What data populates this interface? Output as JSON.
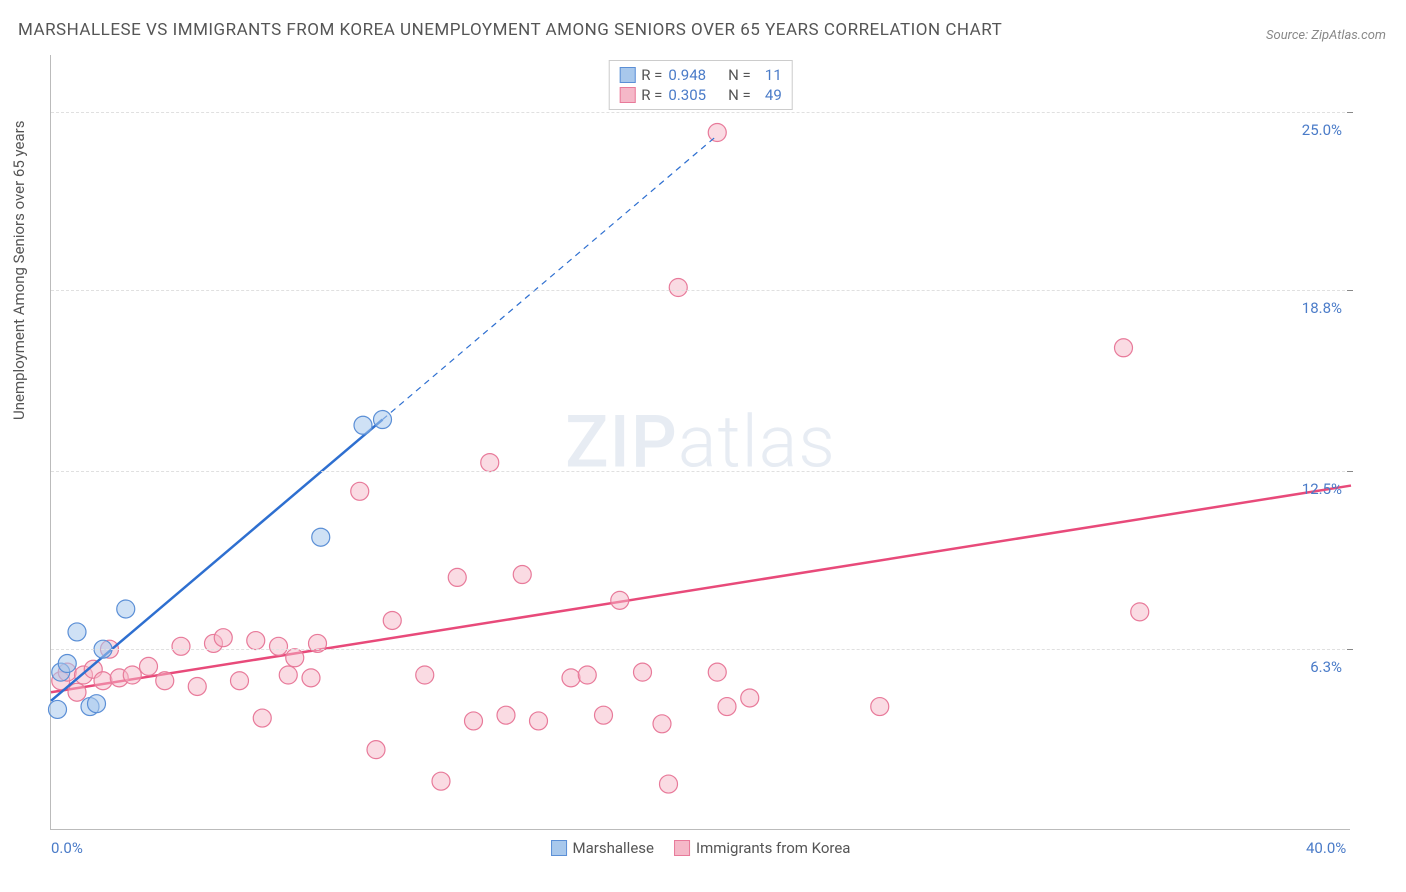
{
  "title": "MARSHALLESE VS IMMIGRANTS FROM KOREA UNEMPLOYMENT AMONG SENIORS OVER 65 YEARS CORRELATION CHART",
  "source": "Source: ZipAtlas.com",
  "y_axis_label": "Unemployment Among Seniors over 65 years",
  "watermark_bold": "ZIP",
  "watermark_light": "atlas",
  "chart": {
    "type": "scatter",
    "xlim": [
      0,
      40
    ],
    "ylim": [
      0,
      27
    ],
    "x_tick_labels": [
      {
        "pos": 0,
        "label": "0.0%"
      },
      {
        "pos": 40,
        "label": "40.0%"
      }
    ],
    "y_tick_labels": [
      {
        "pos": 6.3,
        "label": "6.3%"
      },
      {
        "pos": 12.5,
        "label": "12.5%"
      },
      {
        "pos": 18.8,
        "label": "18.8%"
      },
      {
        "pos": 25.0,
        "label": "25.0%"
      }
    ],
    "gridlines_y": [
      6.3,
      12.5,
      18.8,
      25.0
    ],
    "background_color": "#ffffff",
    "grid_color": "#e0e0e0",
    "series": [
      {
        "name": "Marshallese",
        "R": "0.948",
        "N": "11",
        "color_fill": "#a8c8ec",
        "color_stroke": "#5b8fd6",
        "line_color": "#2e6fd0",
        "marker_radius": 9,
        "fill_opacity": 0.55,
        "line_width": 2.5,
        "trend_solid": {
          "x1": 0,
          "y1": 4.5,
          "x2": 10.2,
          "y2": 14.3
        },
        "trend_dash": {
          "x1": 10.2,
          "y1": 14.3,
          "x2": 20.5,
          "y2": 24.2
        },
        "points": [
          {
            "x": 0.2,
            "y": 4.2
          },
          {
            "x": 0.3,
            "y": 5.5
          },
          {
            "x": 0.5,
            "y": 5.8
          },
          {
            "x": 0.8,
            "y": 6.9
          },
          {
            "x": 1.2,
            "y": 4.3
          },
          {
            "x": 1.4,
            "y": 4.4
          },
          {
            "x": 1.6,
            "y": 6.3
          },
          {
            "x": 2.3,
            "y": 7.7
          },
          {
            "x": 8.3,
            "y": 10.2
          },
          {
            "x": 9.6,
            "y": 14.1
          },
          {
            "x": 10.2,
            "y": 14.3
          }
        ]
      },
      {
        "name": "Immigrants from Korea",
        "R": "0.305",
        "N": "49",
        "color_fill": "#f5b8c8",
        "color_stroke": "#e87a9a",
        "line_color": "#e84a7a",
        "marker_radius": 9,
        "fill_opacity": 0.5,
        "line_width": 2.5,
        "trend_solid": {
          "x1": 0,
          "y1": 4.8,
          "x2": 40,
          "y2": 12.0
        },
        "trend_dash": null,
        "points": [
          {
            "x": 0.3,
            "y": 5.2
          },
          {
            "x": 0.5,
            "y": 5.5
          },
          {
            "x": 0.8,
            "y": 4.8
          },
          {
            "x": 1.0,
            "y": 5.4
          },
          {
            "x": 1.3,
            "y": 5.6
          },
          {
            "x": 1.6,
            "y": 5.2
          },
          {
            "x": 1.8,
            "y": 6.3
          },
          {
            "x": 2.1,
            "y": 5.3
          },
          {
            "x": 2.5,
            "y": 5.4
          },
          {
            "x": 3.0,
            "y": 5.7
          },
          {
            "x": 3.5,
            "y": 5.2
          },
          {
            "x": 4.0,
            "y": 6.4
          },
          {
            "x": 4.5,
            "y": 5.0
          },
          {
            "x": 5.0,
            "y": 6.5
          },
          {
            "x": 5.3,
            "y": 6.7
          },
          {
            "x": 5.8,
            "y": 5.2
          },
          {
            "x": 6.3,
            "y": 6.6
          },
          {
            "x": 6.5,
            "y": 3.9
          },
          {
            "x": 7.0,
            "y": 6.4
          },
          {
            "x": 7.3,
            "y": 5.4
          },
          {
            "x": 7.5,
            "y": 6.0
          },
          {
            "x": 8.0,
            "y": 5.3
          },
          {
            "x": 8.2,
            "y": 6.5
          },
          {
            "x": 9.5,
            "y": 11.8
          },
          {
            "x": 10.0,
            "y": 2.8
          },
          {
            "x": 10.5,
            "y": 7.3
          },
          {
            "x": 11.5,
            "y": 5.4
          },
          {
            "x": 12.0,
            "y": 1.7
          },
          {
            "x": 12.5,
            "y": 8.8
          },
          {
            "x": 13.0,
            "y": 3.8
          },
          {
            "x": 13.5,
            "y": 12.8
          },
          {
            "x": 14.0,
            "y": 4.0
          },
          {
            "x": 14.5,
            "y": 8.9
          },
          {
            "x": 15.0,
            "y": 3.8
          },
          {
            "x": 16.0,
            "y": 5.3
          },
          {
            "x": 16.5,
            "y": 5.4
          },
          {
            "x": 17.0,
            "y": 4.0
          },
          {
            "x": 17.5,
            "y": 8.0
          },
          {
            "x": 18.2,
            "y": 5.5
          },
          {
            "x": 18.8,
            "y": 3.7
          },
          {
            "x": 19.0,
            "y": 1.6
          },
          {
            "x": 19.3,
            "y": 18.9
          },
          {
            "x": 20.5,
            "y": 24.3
          },
          {
            "x": 20.8,
            "y": 4.3
          },
          {
            "x": 20.5,
            "y": 5.5
          },
          {
            "x": 21.5,
            "y": 4.6
          },
          {
            "x": 25.5,
            "y": 4.3
          },
          {
            "x": 33.5,
            "y": 7.6
          },
          {
            "x": 33.0,
            "y": 16.8
          }
        ]
      }
    ]
  }
}
